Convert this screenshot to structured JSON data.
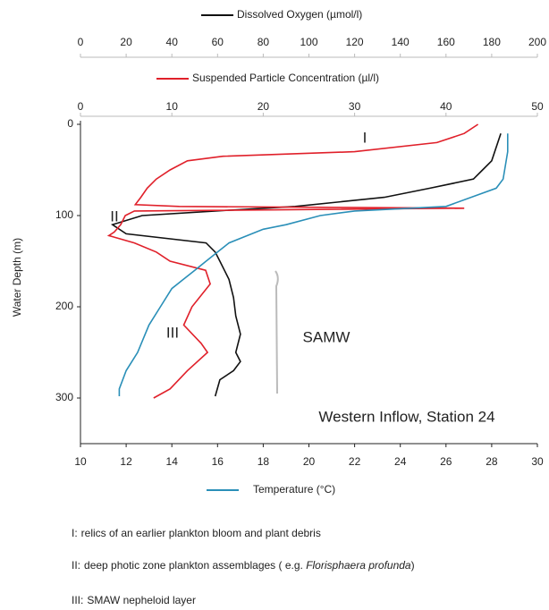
{
  "chart_data": {
    "type": "line",
    "ylabel": "Water Depth (m)",
    "ylim": [
      0,
      350
    ],
    "y_inverted": true,
    "yticks": [
      0,
      100,
      200,
      300
    ],
    "xlim": [
      10,
      30
    ],
    "xticks": [
      10,
      12,
      14,
      16,
      18,
      20,
      22,
      24,
      26,
      28,
      30
    ],
    "x2lim": [
      0,
      50
    ],
    "x2ticks": [
      0,
      10,
      20,
      30,
      40,
      50
    ],
    "x3lim": [
      0,
      200
    ],
    "x3ticks": [
      0,
      20,
      40,
      60,
      80,
      100,
      120,
      140,
      160,
      180,
      200
    ],
    "series": [
      {
        "name": "Dissolved Oxygen (µmol/l)",
        "color": "#111111",
        "axis": "x3",
        "depth": [
          10,
          40,
          50,
          60,
          70,
          80,
          90,
          95,
          100,
          110,
          120,
          130,
          140,
          150,
          160,
          170,
          190,
          210,
          230,
          250,
          260,
          270,
          280,
          298
        ],
        "values": [
          184,
          180,
          176,
          172,
          153,
          133,
          94,
          59,
          27,
          14,
          20,
          55,
          59,
          61,
          63,
          65,
          67,
          68,
          70,
          68,
          70,
          67,
          61,
          59
        ]
      },
      {
        "name": "Suspended Particle Concentration (µl/l)",
        "color": "#e0202a",
        "axis": "x2",
        "depth": [
          0,
          10,
          20,
          30,
          35,
          40,
          50,
          60,
          70,
          80,
          88,
          90,
          92,
          95,
          100,
          110,
          118,
          122,
          130,
          140,
          150,
          160,
          175,
          200,
          220,
          240,
          250,
          270,
          290,
          300
        ],
        "values": [
          43.5,
          42,
          39,
          30,
          15.6,
          11.7,
          9.8,
          8.3,
          7.3,
          6.6,
          6.0,
          10.8,
          42,
          5.9,
          4.9,
          4.4,
          3.7,
          3.1,
          5.9,
          8.3,
          9.8,
          13.7,
          14.2,
          12.2,
          11.3,
          13.2,
          13.9,
          11.7,
          9.8,
          8.0
        ]
      },
      {
        "name": "Temperature (°C)",
        "color": "#2a8fb8",
        "axis": "x",
        "depth": [
          10,
          30,
          60,
          70,
          90,
          95,
          100,
          110,
          115,
          120,
          130,
          140,
          150,
          160,
          170,
          180,
          200,
          220,
          250,
          270,
          290,
          298
        ],
        "values": [
          28.7,
          28.7,
          28.5,
          28.2,
          26,
          22,
          20.5,
          19,
          18,
          17.5,
          16.5,
          16,
          15.5,
          15,
          14.5,
          14,
          13.5,
          13,
          12.5,
          12,
          11.7,
          11.7
        ]
      }
    ],
    "annotations": [
      "I",
      "II",
      "III",
      "SAMW",
      "Western Inflow, Station 24"
    ]
  },
  "footnotes": [
    {
      "label": "I:",
      "text": "relics of an earlier plankton bloom and plant debris"
    },
    {
      "label": "II:",
      "text": "deep photic zone plankton assemblages ( e.g. ",
      "italic": "Florisphaera profunda",
      "after": ")"
    },
    {
      "label": "III:",
      "text": "SMAW nepheloid layer"
    }
  ]
}
